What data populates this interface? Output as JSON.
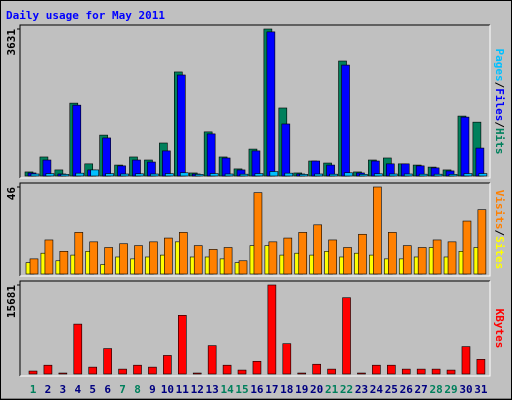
{
  "chart_data": [
    {
      "type": "bar",
      "title": "Daily usage for May 2011",
      "ylim": [
        0,
        3631
      ],
      "yticks": [
        3631
      ],
      "legend_separator": "/",
      "series": [
        {
          "name": "Hits",
          "color": "#00805c",
          "values": [
            100,
            470,
            150,
            1800,
            300,
            1010,
            270,
            470,
            395,
            815,
            2570,
            75,
            1090,
            470,
            175,
            665,
            3631,
            1680,
            75,
            370,
            320,
            2840,
            100,
            395,
            445,
            300,
            270,
            220,
            150,
            1480,
            1330
          ]
        },
        {
          "name": "Files",
          "color": "#0000ff",
          "values": [
            75,
            395,
            50,
            1750,
            150,
            940,
            250,
            395,
            345,
            620,
            2495,
            50,
            1040,
            445,
            150,
            620,
            3560,
            1285,
            50,
            370,
            270,
            2740,
            75,
            370,
            300,
            300,
            250,
            200,
            125,
            1455,
            690
          ]
        },
        {
          "name": "Pages",
          "color": "#00c0ff",
          "values": [
            50,
            60,
            40,
            70,
            150,
            60,
            50,
            55,
            50,
            60,
            80,
            40,
            60,
            50,
            45,
            60,
            110,
            70,
            40,
            50,
            45,
            80,
            40,
            55,
            50,
            50,
            45,
            45,
            40,
            60,
            60
          ]
        }
      ]
    },
    {
      "type": "bar",
      "ylim": [
        0,
        46
      ],
      "yticks": [
        46
      ],
      "legend_separator": "/",
      "series": [
        {
          "name": "Sites",
          "color": "#ffff00",
          "values": [
            6,
            11,
            7,
            10,
            12,
            5,
            9,
            8,
            9,
            10,
            17,
            9,
            9,
            8,
            6,
            15,
            15,
            10,
            11,
            10,
            12,
            9,
            11,
            10,
            8,
            8,
            9,
            14,
            9,
            12,
            14
          ]
        },
        {
          "name": "Visits",
          "color": "#ff8000",
          "values": [
            8,
            18,
            12,
            22,
            17,
            14,
            16,
            15,
            17,
            19,
            22,
            15,
            13,
            14,
            7,
            43,
            17,
            19,
            22,
            26,
            18,
            14,
            21,
            46,
            22,
            15,
            14,
            18,
            17,
            28,
            34
          ]
        }
      ]
    },
    {
      "type": "bar",
      "ylim": [
        0,
        15681
      ],
      "yticks": [
        15681
      ],
      "categories": [
        "1",
        "2",
        "3",
        "4",
        "5",
        "6",
        "7",
        "8",
        "9",
        "10",
        "11",
        "12",
        "13",
        "14",
        "15",
        "16",
        "17",
        "18",
        "19",
        "20",
        "21",
        "22",
        "23",
        "24",
        "25",
        "26",
        "27",
        "28",
        "29",
        "30",
        "31"
      ],
      "category_colors": [
        "#00805c",
        "#000080",
        "#000080",
        "#000080",
        "#000080",
        "#000080",
        "#00805c",
        "#00805c",
        "#000080",
        "#000080",
        "#000080",
        "#000080",
        "#000080",
        "#00805c",
        "#00805c",
        "#000080",
        "#000080",
        "#000080",
        "#000080",
        "#000080",
        "#00805c",
        "#00805c",
        "#000080",
        "#000080",
        "#000080",
        "#000080",
        "#000080",
        "#00805c",
        "#00805c",
        "#000080",
        "#000080"
      ],
      "series": [
        {
          "name": "KBytes",
          "color": "#ff0000",
          "values": [
            520,
            1550,
            170,
            8790,
            1210,
            4480,
            860,
            1550,
            1210,
            3270,
            10340,
            170,
            5000,
            1550,
            690,
            2240,
            15681,
            5340,
            170,
            1720,
            860,
            13440,
            170,
            1550,
            1550,
            860,
            860,
            860,
            690,
            4825,
            2585
          ]
        }
      ]
    }
  ]
}
